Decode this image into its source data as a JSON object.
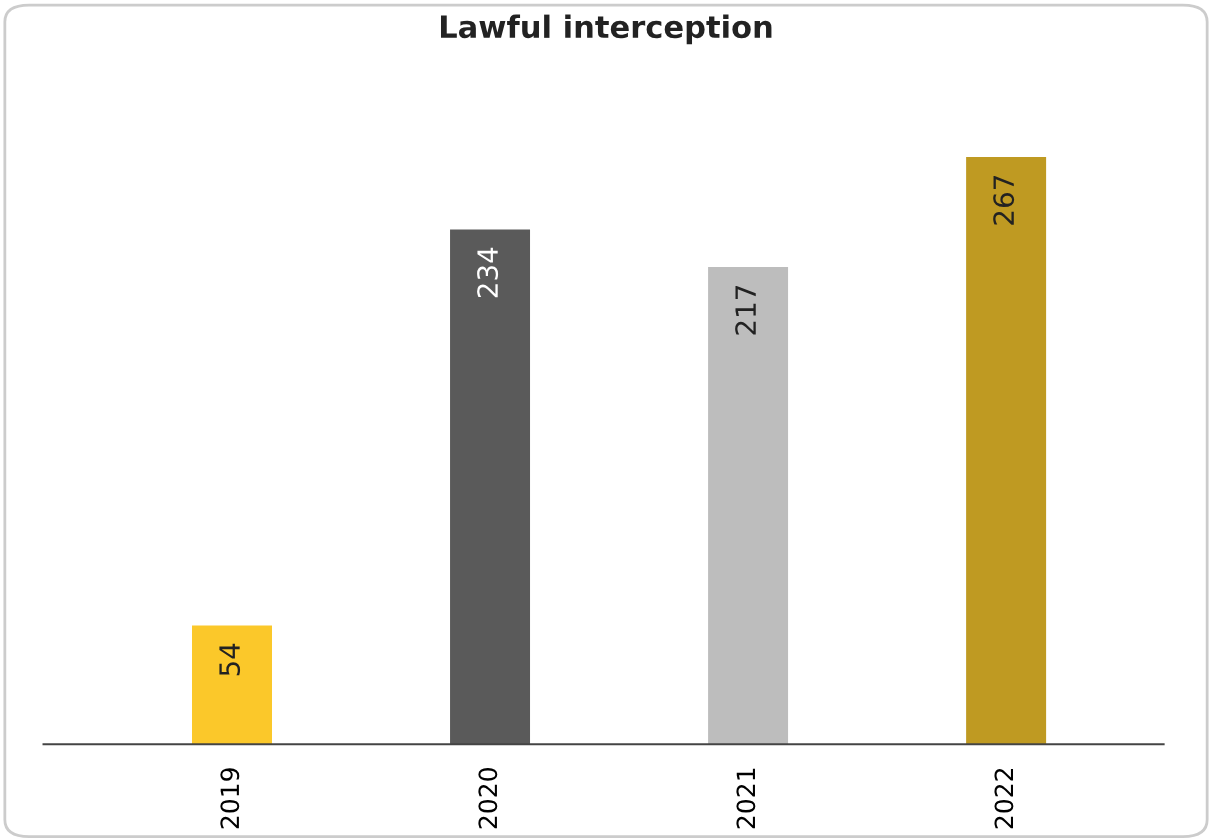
{
  "chart_data": {
    "type": "bar",
    "title": "Lawful interception",
    "categories": [
      "2019",
      "2020",
      "2021",
      "2022"
    ],
    "values": [
      54,
      234,
      217,
      267
    ],
    "colors": [
      "#fbc82a",
      "#5a5a5a",
      "#bdbdbd",
      "#bf9a22"
    ],
    "data_labels": true,
    "grid": false,
    "legend": false
  }
}
